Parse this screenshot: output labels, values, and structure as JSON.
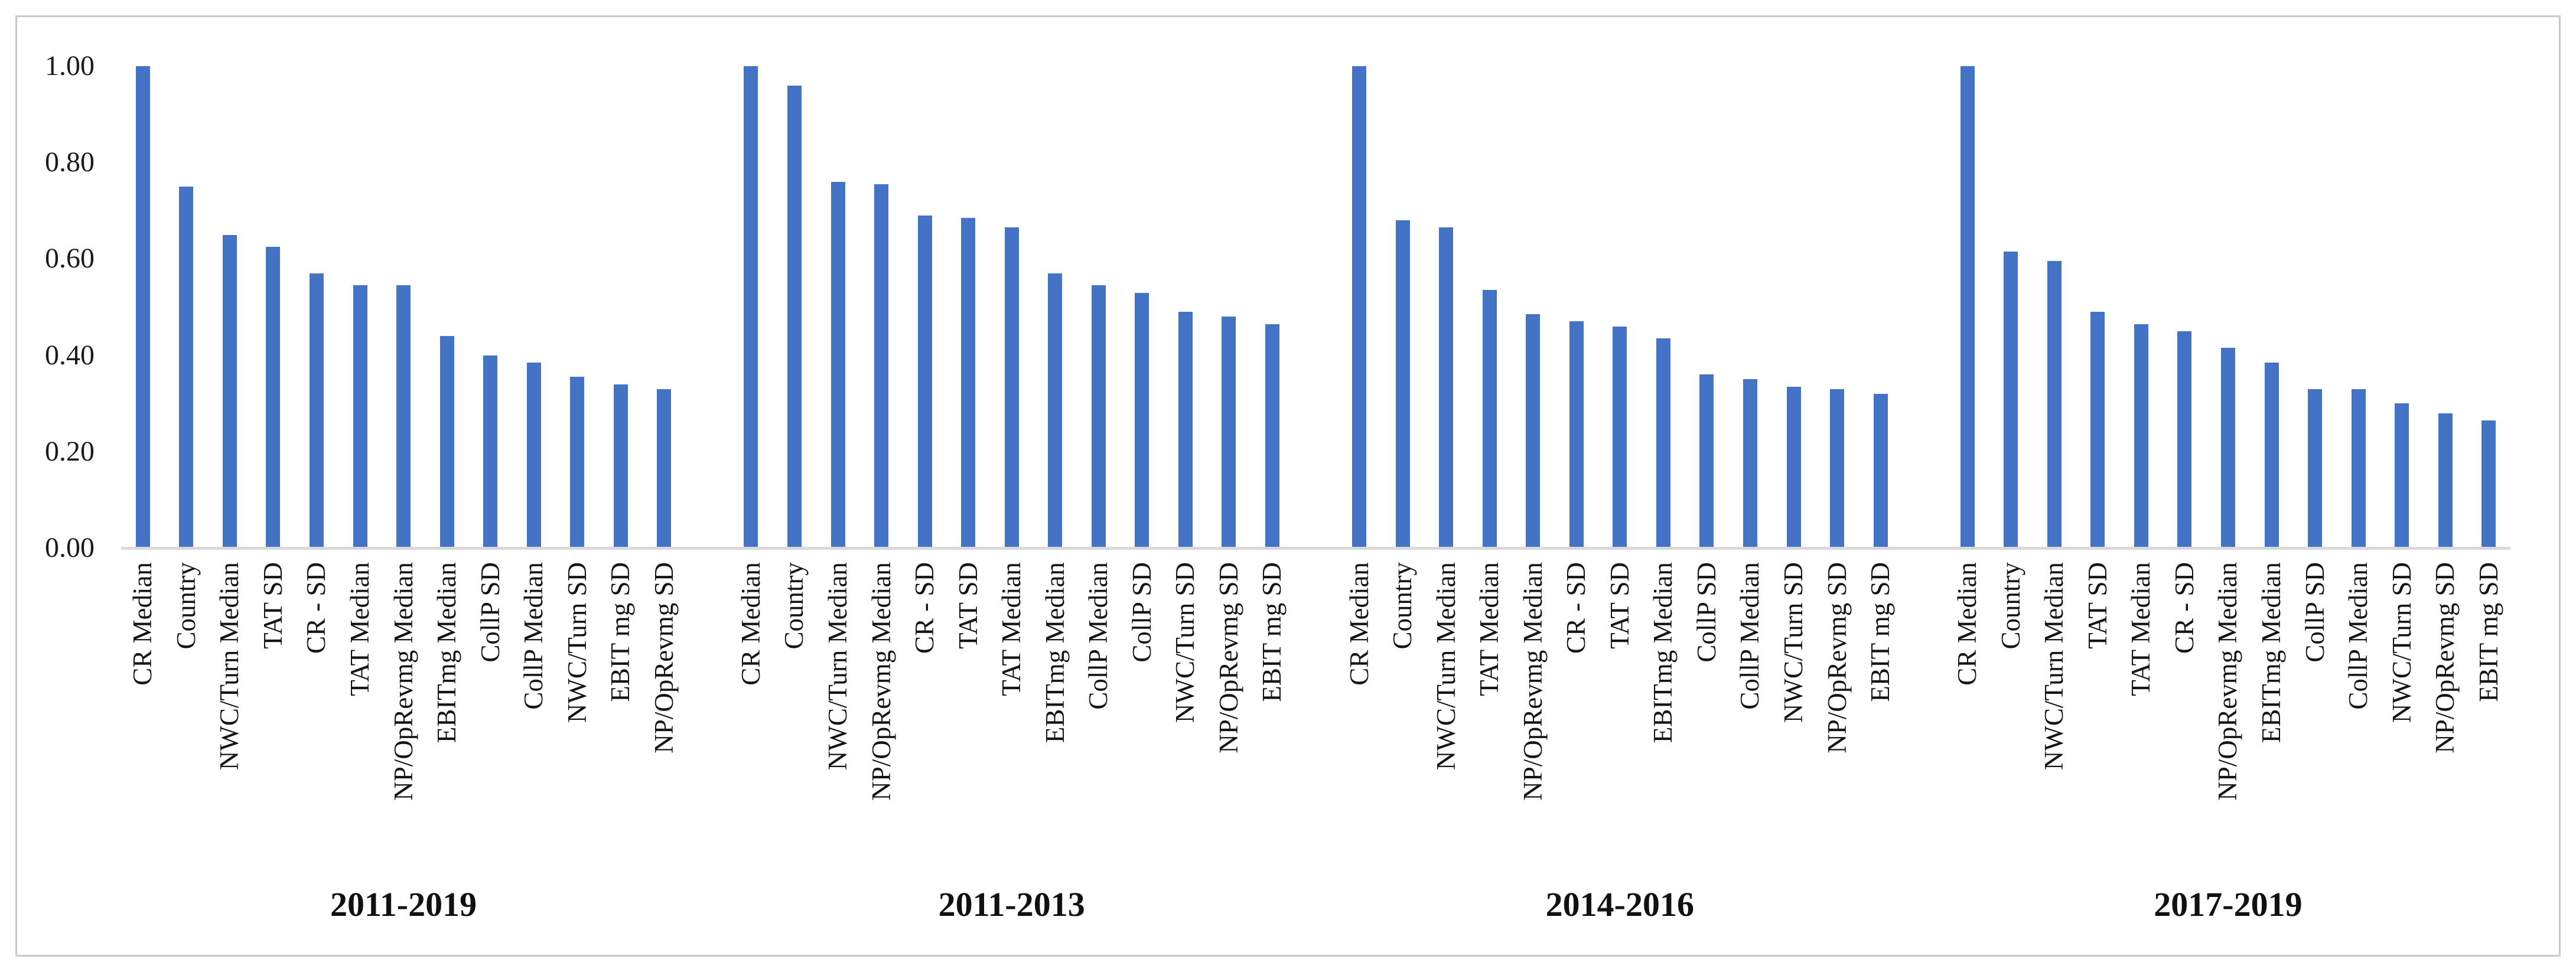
{
  "chart_data": {
    "type": "bar",
    "title": "",
    "xlabel": "",
    "ylabel": "",
    "ylim": [
      0,
      1.0
    ],
    "grid": false,
    "legend": false,
    "bar_color": "#4472C4",
    "axis_line_color": "#D9D9D9",
    "frame_border_color": "#C9C9C9",
    "y_ticks": [
      "1.00",
      "0.80",
      "0.60",
      "0.40",
      "0.20",
      "0.00"
    ],
    "y_tick_values": [
      1.0,
      0.8,
      0.6,
      0.4,
      0.2,
      0.0
    ],
    "groups": [
      {
        "label": "2011-2019",
        "categories": [
          "CR Median",
          "Country",
          "NWC/Turn Median",
          "TAT SD",
          "CR - SD",
          "TAT Median",
          "NP/OpRevmg Median",
          "EBITmg Median",
          "CollP SD",
          "CollP Median",
          "NWC/Turn SD",
          "EBIT mg SD",
          "NP/OpRevmg SD"
        ],
        "values": [
          1.0,
          0.75,
          0.65,
          0.625,
          0.57,
          0.545,
          0.545,
          0.44,
          0.4,
          0.385,
          0.355,
          0.34,
          0.33
        ]
      },
      {
        "label": "2011-2013",
        "categories": [
          "CR Median",
          "Country",
          "NWC/Turn Median",
          "NP/OpRevmg Median",
          "CR - SD",
          "TAT SD",
          "TAT Median",
          "EBITmg Median",
          "CollP Median",
          "CollP SD",
          "NWC/Turn SD",
          "NP/OpRevmg SD",
          "EBIT mg SD"
        ],
        "values": [
          1.0,
          0.96,
          0.76,
          0.755,
          0.69,
          0.685,
          0.665,
          0.57,
          0.545,
          0.53,
          0.49,
          0.48,
          0.465
        ]
      },
      {
        "label": "2014-2016",
        "categories": [
          "CR Median",
          "Country",
          "NWC/Turn Median",
          "TAT Median",
          "NP/OpRevmg Median",
          "CR - SD",
          "TAT SD",
          "EBITmg Median",
          "CollP SD",
          "CollP Median",
          "NWC/Turn SD",
          "NP/OpRevmg SD",
          "EBIT mg SD"
        ],
        "values": [
          1.0,
          0.68,
          0.665,
          0.535,
          0.485,
          0.47,
          0.46,
          0.435,
          0.36,
          0.35,
          0.335,
          0.33,
          0.32
        ]
      },
      {
        "label": "2017-2019",
        "categories": [
          "CR Median",
          "Country",
          "NWC/Turn Median",
          "TAT SD",
          "TAT Median",
          "CR - SD",
          "NP/OpRevmg Median",
          "EBITmg Median",
          "CollP SD",
          "CollP Median",
          "NWC/Turn SD",
          "NP/OpRevmg SD",
          "EBIT mg SD"
        ],
        "values": [
          1.0,
          0.615,
          0.595,
          0.49,
          0.465,
          0.45,
          0.415,
          0.385,
          0.33,
          0.33,
          0.3,
          0.28,
          0.265
        ]
      }
    ]
  }
}
